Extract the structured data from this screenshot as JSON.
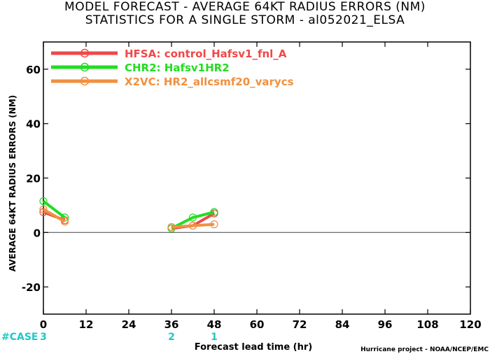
{
  "header": {
    "title_line1": "MODEL FORECAST - AVERAGE 64KT RADIUS ERRORS (NM)",
    "title_line2": "STATISTICS FOR A SINGLE STORM - al052021_ELSA"
  },
  "footer": {
    "case_label": "#CASE",
    "credit": "Hurricane project - NOAA/NCEP/EMC"
  },
  "chart_data": {
    "type": "line",
    "title": "MODEL FORECAST - AVERAGE 64KT RADIUS ERRORS (NM)",
    "subtitle": "STATISTICS FOR A SINGLE STORM - al052021_ELSA",
    "xlabel": "Forecast lead time (hr)",
    "ylabel": "AVERAGE 64KT RADIUS ERRORS (NM)",
    "xlim": [
      0,
      120
    ],
    "ylim": [
      -30,
      70
    ],
    "x_ticks": [
      0,
      12,
      24,
      36,
      48,
      60,
      72,
      84,
      96,
      108,
      120
    ],
    "y_ticks": [
      -20,
      0,
      20,
      40,
      60
    ],
    "zero_line": true,
    "grid": false,
    "legend_placement": "top-left",
    "series": [
      {
        "name": "HFSA: control_Hafsv1_fnl_A",
        "color": "#f04848",
        "segments": [
          [
            [
              0,
              7.5
            ],
            [
              6,
              4.5
            ]
          ],
          [
            [
              36,
              1.5
            ],
            [
              42,
              2.5
            ],
            [
              48,
              7
            ]
          ]
        ]
      },
      {
        "name": "CHR2: Hafsv1HR2",
        "color": "#22dd22",
        "segments": [
          [
            [
              0,
              11.5
            ],
            [
              6,
              5.5
            ]
          ],
          [
            [
              36,
              1.5
            ],
            [
              42,
              5.5
            ],
            [
              48,
              7.5
            ]
          ]
        ]
      },
      {
        "name": "X2VC: HR2_allcsmf20_varycs",
        "color": "#f09040",
        "segments": [
          [
            [
              0,
              8.5
            ],
            [
              6,
              4
            ]
          ],
          [
            [
              36,
              2
            ],
            [
              42,
              2.5
            ],
            [
              48,
              3
            ]
          ]
        ]
      }
    ],
    "case_counts": [
      {
        "x": 0,
        "count": "3"
      },
      {
        "x": 36,
        "count": "2"
      },
      {
        "x": 48,
        "count": "1"
      }
    ]
  }
}
